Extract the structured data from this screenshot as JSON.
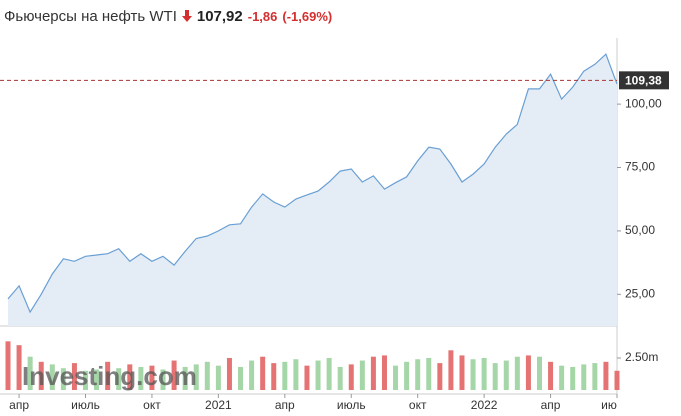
{
  "chart_data": {
    "type": "line",
    "title": "Фьючерсы на нефть WTI",
    "price": "107,92",
    "change": "-1,86",
    "change_pct": "(-1,69%)",
    "watermark": "Investing.com",
    "categories": [
      null,
      "апр",
      null,
      null,
      null,
      null,
      null,
      "июль",
      null,
      null,
      null,
      null,
      null,
      "окт",
      null,
      null,
      null,
      null,
      null,
      "2021",
      null,
      null,
      null,
      null,
      null,
      "апр",
      null,
      null,
      null,
      null,
      null,
      "июль",
      null,
      null,
      null,
      null,
      null,
      "окт",
      null,
      null,
      null,
      null,
      null,
      "2022",
      null,
      null,
      null,
      null,
      null,
      "апр",
      null,
      null,
      null,
      null,
      null,
      "ию"
    ],
    "values": [
      23.2,
      28.3,
      18,
      25,
      33,
      39,
      38,
      40,
      40.5,
      41,
      43,
      38,
      41,
      38,
      40,
      36.5,
      42,
      47,
      48,
      50,
      52.4,
      52.8,
      59.4,
      64.6,
      61.4,
      59.4,
      62.6,
      64.2,
      65.7,
      69.3,
      73.6,
      74.4,
      69.3,
      71.7,
      66.5,
      69,
      71.3,
      77.6,
      83,
      82.3,
      76.4,
      69.3,
      72.4,
      76.4,
      83,
      88.2,
      92,
      106,
      106,
      111.8,
      102,
      106.7,
      113,
      115.7,
      119.7,
      107.92
    ],
    "color": "#6a9fd4",
    "fill": "#e4edf5",
    "ylim": [
      12.5,
      124.5
    ],
    "yticks": [
      {
        "value": 25,
        "label": "25,00"
      },
      {
        "value": 50,
        "label": "50,00"
      },
      {
        "value": 75,
        "label": "75,00"
      },
      {
        "value": 100,
        "label": "100,00"
      }
    ],
    "reference": {
      "value": 109.38,
      "label": "109,38",
      "color": "#a33"
    },
    "volume": {
      "values": [
        3800000,
        3500000,
        2600000,
        2200000,
        2000000,
        1700000,
        2100000,
        1500000,
        1600000,
        2200000,
        1700000,
        2000000,
        1800000,
        1900000,
        1600000,
        2300000,
        1800000,
        2000000,
        2200000,
        1900000,
        2500000,
        1800000,
        2300000,
        2600000,
        2100000,
        2200000,
        2400000,
        1900000,
        2300000,
        2500000,
        1800000,
        2000000,
        2300000,
        2600000,
        2700000,
        1900000,
        2200000,
        2400000,
        2500000,
        2100000,
        3100000,
        2700000,
        2400000,
        2500000,
        2100000,
        2300000,
        2600000,
        2700000,
        2600000,
        2200000,
        1900000,
        1800000,
        2000000,
        2100000,
        2200000,
        1500000
      ],
      "colors": [
        "#e57373",
        "#e57373",
        "#a5d6a7",
        "#e57373",
        "#a5d6a7",
        "#a5d6a7",
        "#e57373",
        "#a5d6a7",
        "#a5d6a7",
        "#e57373",
        "#a5d6a7",
        "#e57373",
        "#a5d6a7",
        "#e57373",
        "#a5d6a7",
        "#e57373",
        "#a5d6a7",
        "#a5d6a7",
        "#a5d6a7",
        "#a5d6a7",
        "#e57373",
        "#a5d6a7",
        "#a5d6a7",
        "#e57373",
        "#e57373",
        "#a5d6a7",
        "#a5d6a7",
        "#e57373",
        "#a5d6a7",
        "#a5d6a7",
        "#a5d6a7",
        "#e57373",
        "#a5d6a7",
        "#e57373",
        "#e57373",
        "#a5d6a7",
        "#a5d6a7",
        "#a5d6a7",
        "#a5d6a7",
        "#e57373",
        "#e57373",
        "#e57373",
        "#a5d6a7",
        "#a5d6a7",
        "#a5d6a7",
        "#a5d6a7",
        "#a5d6a7",
        "#e57373",
        "#a5d6a7",
        "#e57373",
        "#a5d6a7",
        "#a5d6a7",
        "#a5d6a7",
        "#a5d6a7",
        "#e57373",
        "#e57373"
      ],
      "ylim": [
        0,
        4060000
      ],
      "yticks": [
        {
          "value": 2500000,
          "label": "2.50m"
        }
      ]
    }
  }
}
